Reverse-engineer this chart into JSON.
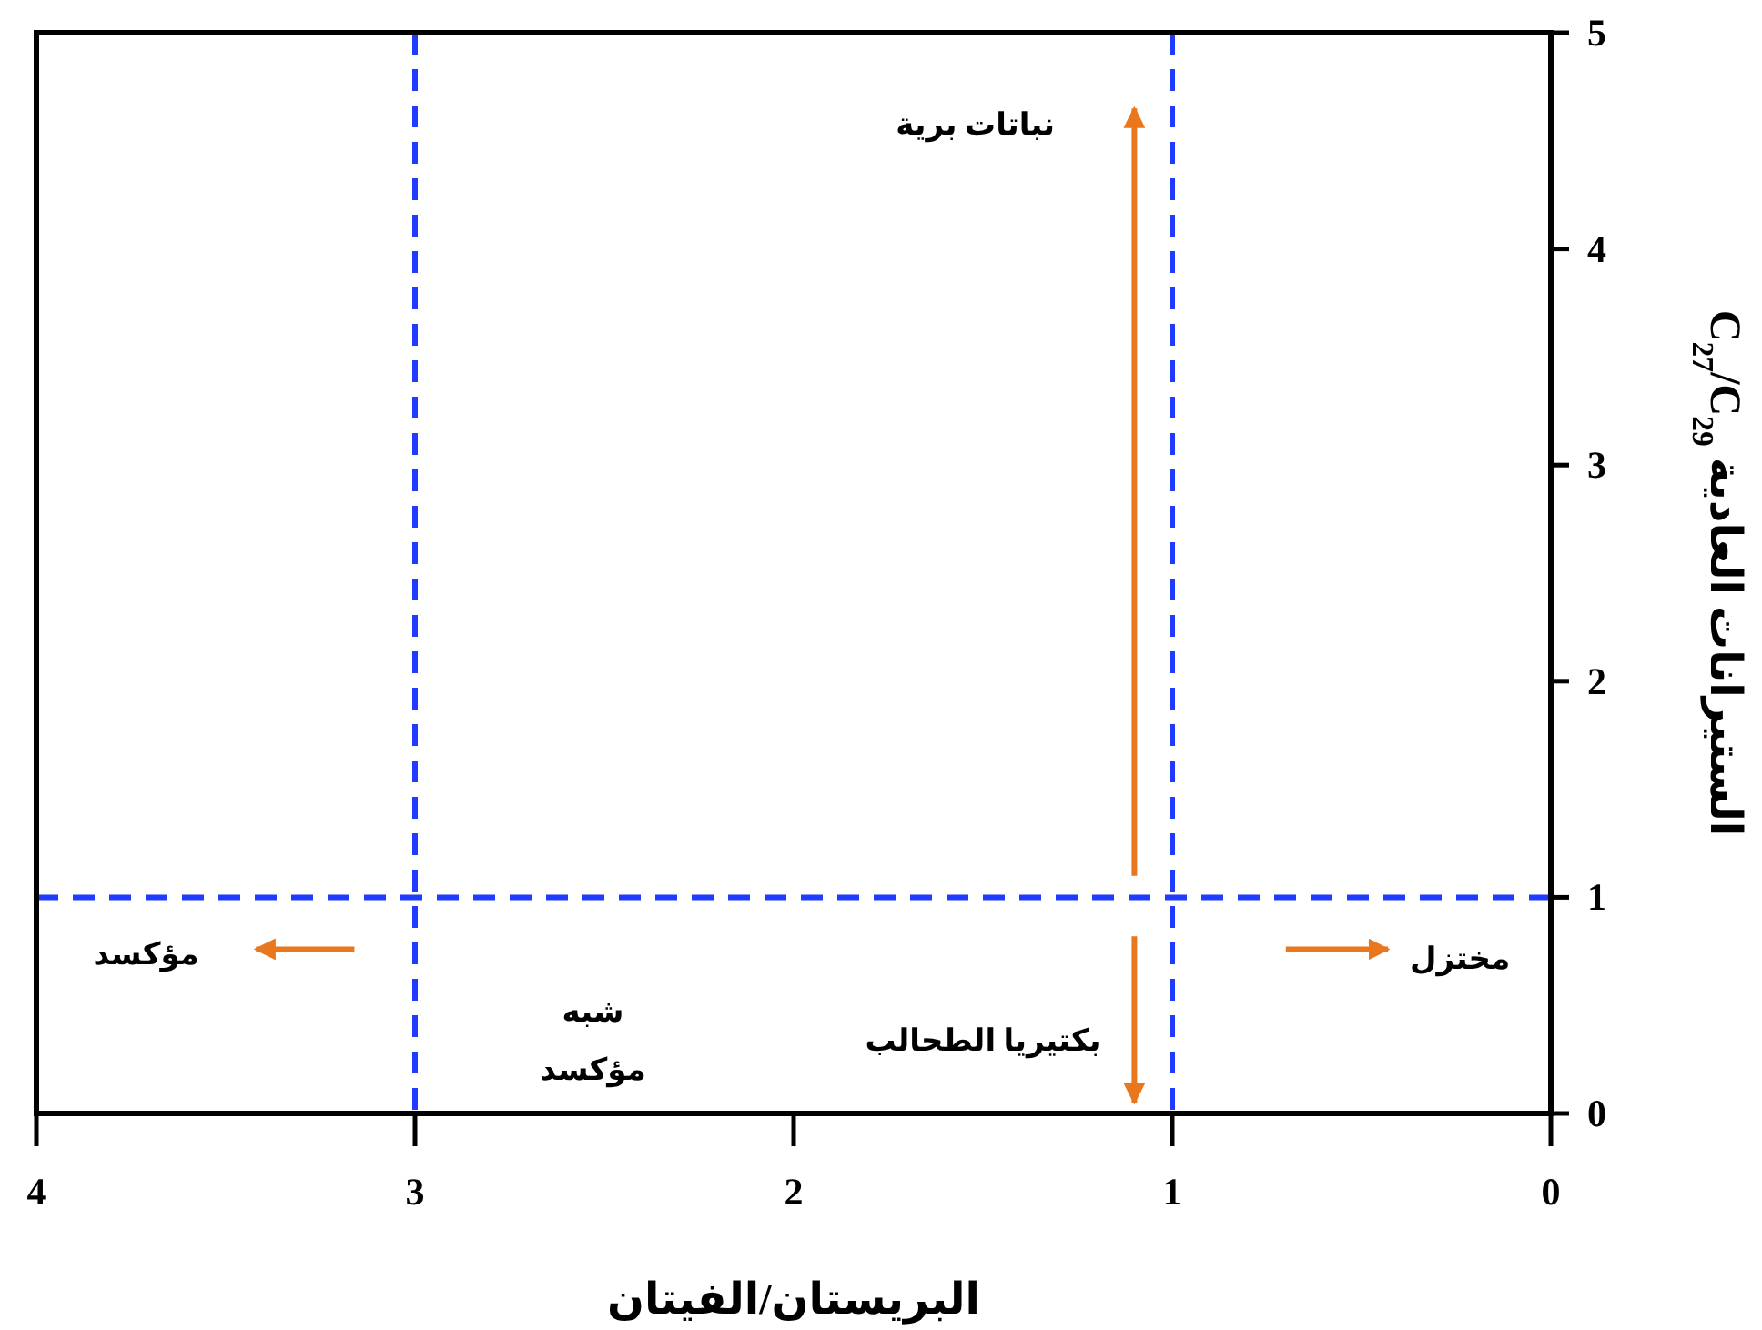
{
  "chart_data": {
    "type": "scatter",
    "xlabel": "البريستان/الفيتان",
    "ylabel": "C$_{27}$/C$_{29}$ الستيرانات العادية",
    "xlim": [
      4,
      0
    ],
    "ylim": [
      0,
      5
    ],
    "xticks": [
      4,
      3,
      2,
      1,
      0
    ],
    "yticks": [
      0,
      1,
      2,
      3,
      4,
      5
    ],
    "ref_lines": [
      {
        "axis": "x",
        "value": 3,
        "color": "#1f3bff",
        "line_style": "dashed"
      },
      {
        "axis": "x",
        "value": 1,
        "color": "#1f3bff",
        "line_style": "dashed"
      },
      {
        "axis": "y",
        "value": 1,
        "color": "#1f3bff",
        "line_style": "dashed"
      }
    ],
    "annotations": [
      "نباتات برية",
      "بكتيريا الطحالب",
      "مختزل",
      "مؤكسد",
      "شبه\nمؤكسد"
    ]
  }
}
